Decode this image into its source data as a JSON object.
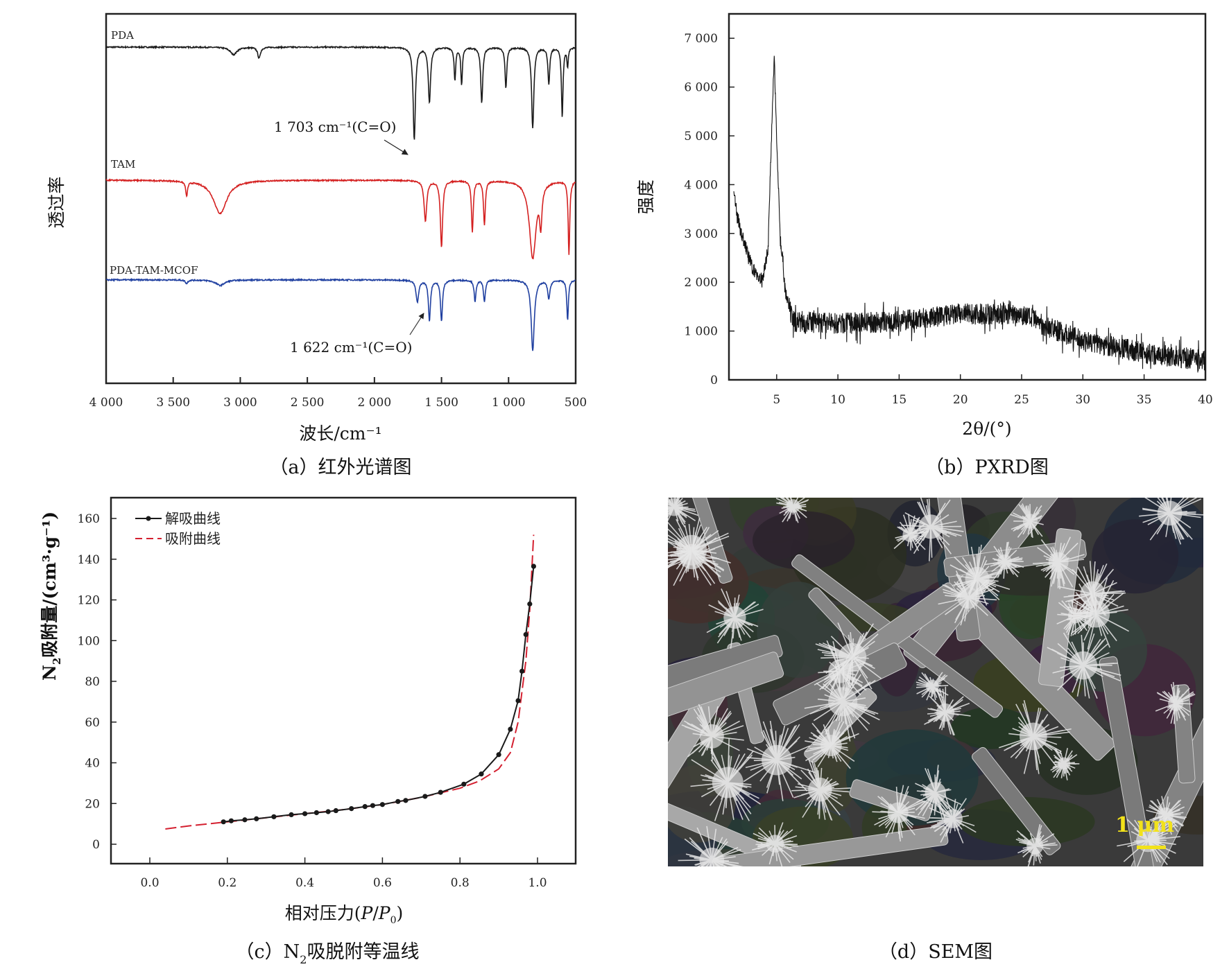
{
  "chart_data": [
    {
      "type": "line",
      "caption": "（a）红外光谱图",
      "xlabel": "波长/cm⁻¹",
      "ylabel": "透过率",
      "xlim": [
        4000,
        500
      ],
      "x_ticks": [
        "4 000",
        "3 500",
        "3 000",
        "2 500",
        "2 000",
        "1 500",
        "1 000",
        "500"
      ],
      "x_tick_values": [
        4000,
        3500,
        3000,
        2500,
        2000,
        1500,
        1000,
        500
      ],
      "ylim": [
        0,
        100
      ],
      "series": [
        {
          "name": "PDA",
          "color": "#1a1a1a",
          "baseline": 91,
          "peaks": [
            [
              3050,
              2,
              30
            ],
            [
              2860,
              3,
              12
            ],
            [
              1703,
              25,
              10
            ],
            [
              1590,
              15,
              10
            ],
            [
              1400,
              9,
              7
            ],
            [
              1350,
              10,
              7
            ],
            [
              1200,
              15,
              9
            ],
            [
              1020,
              11,
              8
            ],
            [
              820,
              22,
              10
            ],
            [
              700,
              10,
              8
            ],
            [
              600,
              19,
              7
            ],
            [
              560,
              5,
              6
            ]
          ]
        },
        {
          "name": "TAM",
          "color": "#d42020",
          "baseline": 55,
          "peaks": [
            [
              3400,
              4,
              8
            ],
            [
              3150,
              9,
              60
            ],
            [
              1620,
              11,
              12
            ],
            [
              1500,
              18,
              10
            ],
            [
              1270,
              14,
              8
            ],
            [
              1180,
              12,
              8
            ],
            [
              820,
              21,
              30
            ],
            [
              760,
              10,
              10
            ],
            [
              550,
              20,
              7
            ]
          ]
        },
        {
          "name": "PDA-TAM-MCOF",
          "color": "#1f3fa0",
          "baseline": 28,
          "peaks": [
            [
              3400,
              1,
              10
            ],
            [
              3150,
              1.5,
              40
            ],
            [
              1680,
              6,
              12
            ],
            [
              1590,
              11,
              9
            ],
            [
              1500,
              11,
              9
            ],
            [
              1250,
              6,
              8
            ],
            [
              1180,
              6,
              8
            ],
            [
              820,
              19,
              14
            ],
            [
              700,
              5,
              10
            ],
            [
              560,
              11,
              7
            ]
          ]
        }
      ],
      "annotations": [
        {
          "text": "1 703 cm⁻¹(C=O)",
          "x": 1703
        },
        {
          "text": "1 622 cm⁻¹(C=O)",
          "x": 1622
        }
      ]
    },
    {
      "type": "line",
      "caption": "（b）PXRD图",
      "xlabel": "2θ/(°)",
      "ylabel": "强度",
      "xlim": [
        1.2,
        40
      ],
      "ylim": [
        0,
        7400
      ],
      "x_ticks": [
        "5",
        "10",
        "15",
        "20",
        "25",
        "30",
        "35",
        "40"
      ],
      "x_tick_values": [
        5,
        10,
        15,
        20,
        25,
        30,
        35,
        40
      ],
      "y_ticks": [
        "0",
        "1 000",
        "2 000",
        "3 000",
        "4 000",
        "5 000",
        "6 000",
        "7 000"
      ],
      "y_tick_values": [
        0,
        1000,
        2000,
        3000,
        4000,
        5000,
        6000,
        7000
      ],
      "series": [
        {
          "name": "PXRD",
          "color": "#111111",
          "noise": 220,
          "envelope": [
            [
              1.5,
              3800
            ],
            [
              2,
              3100
            ],
            [
              3,
              2300
            ],
            [
              3.8,
              2000
            ],
            [
              4.3,
              2700
            ],
            [
              4.6,
              5200
            ],
            [
              4.8,
              6600
            ],
            [
              5.0,
              5000
            ],
            [
              5.3,
              2900
            ],
            [
              5.7,
              1800
            ],
            [
              6.3,
              1200
            ],
            [
              10,
              1150
            ],
            [
              15,
              1200
            ],
            [
              20,
              1350
            ],
            [
              25,
              1350
            ],
            [
              27,
              1100
            ],
            [
              30,
              800
            ],
            [
              35,
              550
            ],
            [
              40,
              400
            ]
          ]
        }
      ]
    },
    {
      "type": "line",
      "caption_prefix": "（c）N",
      "caption_sub": "2",
      "caption_suffix": "吸脱附等温线",
      "xlabel_prefix": "相对压力(",
      "xlabel_p": "P",
      "xlabel_slash": "/",
      "xlabel_p0": "P",
      "xlabel_sub": "0",
      "xlabel_suffix": ")",
      "ylabel_prefix": "N",
      "ylabel_sub": "2",
      "ylabel_suffix": "吸附量/(cm³·g⁻¹)",
      "xlim": [
        -0.2,
        1.2
      ],
      "ylim": [
        -10,
        170
      ],
      "x_ticks": [
        "0.0",
        "0.2",
        "0.4",
        "0.6",
        "0.8",
        "1.0"
      ],
      "x_tick_values": [
        0,
        0.2,
        0.4,
        0.6,
        0.8,
        1.0
      ],
      "y_ticks": [
        "0",
        "20",
        "40",
        "60",
        "80",
        "100",
        "120",
        "140",
        "160"
      ],
      "y_tick_values": [
        0,
        20,
        40,
        60,
        80,
        100,
        120,
        140,
        160
      ],
      "legend_position": "top-left",
      "series": [
        {
          "name": "解吸曲线",
          "color": "#1a1a1a",
          "style": "solid-markers",
          "x": [
            0.19,
            0.21,
            0.245,
            0.275,
            0.32,
            0.365,
            0.4,
            0.43,
            0.46,
            0.48,
            0.52,
            0.555,
            0.575,
            0.6,
            0.64,
            0.66,
            0.71,
            0.75,
            0.81,
            0.855,
            0.9,
            0.93,
            0.95,
            0.96,
            0.97,
            0.98,
            0.99
          ],
          "y": [
            11,
            11.5,
            12,
            12.5,
            13.5,
            14.5,
            15,
            15.5,
            16,
            16.5,
            17.5,
            18.5,
            19,
            19.5,
            21,
            21.5,
            23.5,
            25.5,
            29.5,
            34.5,
            44,
            56.5,
            70.5,
            85,
            103,
            118,
            136.5
          ]
        },
        {
          "name": "吸附曲线",
          "color": "#d42030",
          "style": "dashed",
          "x": [
            0.04,
            0.1,
            0.2,
            0.3,
            0.4,
            0.5,
            0.6,
            0.7,
            0.8,
            0.85,
            0.9,
            0.93,
            0.95,
            0.97,
            0.98,
            0.99
          ],
          "y": [
            7.5,
            9,
            11,
            13,
            15,
            17,
            19.5,
            23,
            27.5,
            31,
            37,
            45,
            60,
            90,
            115,
            152
          ]
        }
      ]
    }
  ],
  "sem": {
    "caption": "（d）SEM图",
    "scale_bar_label": "1 μm",
    "scale_bar_color": "#f2e21a"
  }
}
